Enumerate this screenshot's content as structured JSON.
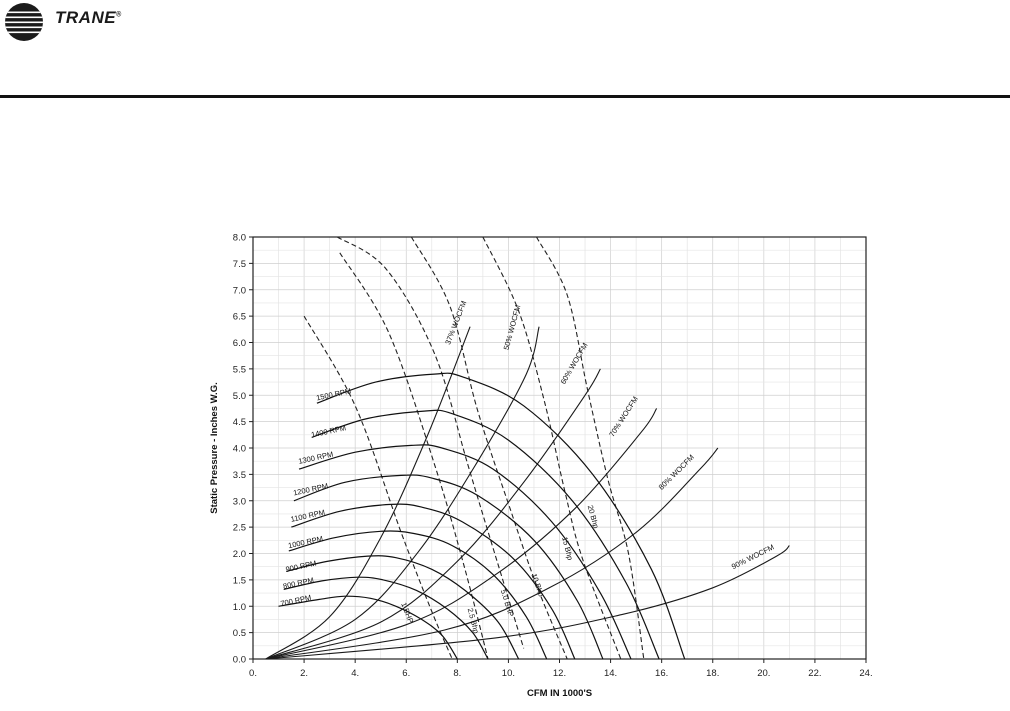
{
  "brand": {
    "name": "TRANE",
    "mark": "®"
  },
  "chart_data": {
    "type": "line",
    "xlabel": "CFM IN 1000'S",
    "ylabel": "Static Pressure - Inches W.G.",
    "xlim": [
      0,
      24
    ],
    "ylim": [
      0,
      8
    ],
    "x_ticks": [
      "0.",
      "2.",
      "4.",
      "6.",
      "8.",
      "10.",
      "12.",
      "14.",
      "16.",
      "18.",
      "20.",
      "22.",
      "24."
    ],
    "y_ticks": [
      "0.0",
      "0.5",
      "1.0",
      "1.5",
      "2.0",
      "2.5",
      "3.0",
      "3.5",
      "4.0",
      "4.5",
      "5.0",
      "5.5",
      "6.0",
      "6.5",
      "7.0",
      "7.5",
      "8.0"
    ],
    "grid": true,
    "rpm_curves": [
      {
        "name": "700 RPM",
        "label_at": [
          1.1,
          1.0
        ],
        "points": [
          [
            1.0,
            1.0
          ],
          [
            2.6,
            1.13
          ],
          [
            3.6,
            1.19
          ],
          [
            4.6,
            1.15
          ],
          [
            5.6,
            1.0
          ],
          [
            6.6,
            0.75
          ],
          [
            7.4,
            0.45
          ],
          [
            8.0,
            0.0
          ]
        ]
      },
      {
        "name": "800 RPM",
        "label_at": [
          1.2,
          1.33
        ],
        "points": [
          [
            1.2,
            1.32
          ],
          [
            2.7,
            1.48
          ],
          [
            4.1,
            1.55
          ],
          [
            5.1,
            1.5
          ],
          [
            6.4,
            1.3
          ],
          [
            7.6,
            0.95
          ],
          [
            8.6,
            0.5
          ],
          [
            9.2,
            0.0
          ]
        ]
      },
      {
        "name": "900 RPM",
        "label_at": [
          1.3,
          1.65
        ],
        "points": [
          [
            1.3,
            1.66
          ],
          [
            2.9,
            1.85
          ],
          [
            4.5,
            1.95
          ],
          [
            5.6,
            1.92
          ],
          [
            7.0,
            1.7
          ],
          [
            8.3,
            1.3
          ],
          [
            9.6,
            0.7
          ],
          [
            10.4,
            0.0
          ]
        ]
      },
      {
        "name": "1000 RPM",
        "label_at": [
          1.4,
          2.1
        ],
        "points": [
          [
            1.4,
            2.05
          ],
          [
            3.2,
            2.3
          ],
          [
            5.0,
            2.42
          ],
          [
            6.3,
            2.38
          ],
          [
            7.8,
            2.15
          ],
          [
            9.4,
            1.6
          ],
          [
            10.7,
            0.8
          ],
          [
            11.5,
            0.0
          ]
        ]
      },
      {
        "name": "1100 RPM",
        "label_at": [
          1.5,
          2.6
        ],
        "points": [
          [
            1.5,
            2.5
          ],
          [
            3.4,
            2.8
          ],
          [
            5.4,
            2.93
          ],
          [
            6.6,
            2.88
          ],
          [
            8.2,
            2.6
          ],
          [
            10.2,
            1.9
          ],
          [
            11.7,
            0.95
          ],
          [
            12.6,
            0.0
          ]
        ]
      },
      {
        "name": "1200 RPM",
        "label_at": [
          1.6,
          3.1
        ],
        "points": [
          [
            1.6,
            3.0
          ],
          [
            3.6,
            3.35
          ],
          [
            5.8,
            3.48
          ],
          [
            7.0,
            3.43
          ],
          [
            8.8,
            3.1
          ],
          [
            11.0,
            2.25
          ],
          [
            12.7,
            1.1
          ],
          [
            13.7,
            0.0
          ]
        ]
      },
      {
        "name": "1300 RPM",
        "label_at": [
          1.8,
          3.7
        ],
        "points": [
          [
            1.8,
            3.6
          ],
          [
            4.0,
            3.92
          ],
          [
            6.2,
            4.05
          ],
          [
            7.4,
            4.0
          ],
          [
            9.4,
            3.6
          ],
          [
            11.7,
            2.6
          ],
          [
            13.6,
            1.25
          ],
          [
            14.8,
            0.0
          ]
        ]
      },
      {
        "name": "1400 RPM",
        "label_at": [
          2.3,
          4.2
        ],
        "points": [
          [
            2.3,
            4.2
          ],
          [
            4.4,
            4.55
          ],
          [
            6.7,
            4.7
          ],
          [
            7.8,
            4.65
          ],
          [
            10.0,
            4.15
          ],
          [
            12.5,
            3.0
          ],
          [
            14.6,
            1.45
          ],
          [
            15.9,
            0.0
          ]
        ]
      },
      {
        "name": "1500 RPM",
        "label_at": [
          2.5,
          4.9
        ],
        "points": [
          [
            2.5,
            4.85
          ],
          [
            4.8,
            5.25
          ],
          [
            7.1,
            5.4
          ],
          [
            8.2,
            5.35
          ],
          [
            10.6,
            4.8
          ],
          [
            13.3,
            3.5
          ],
          [
            15.6,
            1.7
          ],
          [
            16.9,
            0.0
          ]
        ]
      }
    ],
    "efficiency_lines": [
      {
        "name": "37% WOCFM",
        "label_at": [
          7.7,
          5.95
        ],
        "points": [
          [
            0.5,
            0.0
          ],
          [
            3.0,
            0.8
          ],
          [
            5.0,
            2.3
          ],
          [
            6.8,
            4.2
          ],
          [
            8.5,
            6.3
          ]
        ]
      },
      {
        "name": "50% WOCFM",
        "label_at": [
          10.0,
          5.85
        ],
        "points": [
          [
            0.5,
            0.0
          ],
          [
            4.0,
            0.75
          ],
          [
            6.5,
            2.05
          ],
          [
            8.8,
            3.75
          ],
          [
            10.7,
            5.4
          ],
          [
            11.2,
            6.3
          ]
        ]
      },
      {
        "name": "60% WOCFM",
        "label_at": [
          12.2,
          5.2
        ],
        "points": [
          [
            0.5,
            0.0
          ],
          [
            5.0,
            0.7
          ],
          [
            8.0,
            1.85
          ],
          [
            10.6,
            3.35
          ],
          [
            13.0,
            5.0
          ],
          [
            13.6,
            5.5
          ]
        ]
      },
      {
        "name": "70% WOCFM",
        "label_at": [
          14.1,
          4.2
        ],
        "points": [
          [
            0.5,
            0.0
          ],
          [
            6.0,
            0.65
          ],
          [
            9.5,
            1.6
          ],
          [
            12.6,
            2.85
          ],
          [
            15.2,
            4.3
          ],
          [
            15.8,
            4.75
          ]
        ]
      },
      {
        "name": "80% WOCFM",
        "label_at": [
          16.0,
          3.2
        ],
        "points": [
          [
            0.5,
            0.0
          ],
          [
            7.5,
            0.55
          ],
          [
            11.6,
            1.35
          ],
          [
            15.0,
            2.4
          ],
          [
            17.5,
            3.6
          ],
          [
            18.2,
            4.0
          ]
        ]
      },
      {
        "name": "90% WOCFM",
        "label_at": [
          18.8,
          1.7
        ],
        "points": [
          [
            0.5,
            0.0
          ],
          [
            9.5,
            0.4
          ],
          [
            14.5,
            0.85
          ],
          [
            18.0,
            1.35
          ],
          [
            20.5,
            1.95
          ],
          [
            21.0,
            2.15
          ]
        ]
      }
    ],
    "bhp_lines": [
      {
        "name": "1 BHP",
        "label_at": [
          5.8,
          1.05
        ],
        "points": [
          [
            2.0,
            6.5
          ],
          [
            4.0,
            4.8
          ],
          [
            5.8,
            2.4
          ],
          [
            7.0,
            0.9
          ],
          [
            7.8,
            0.0
          ]
        ]
      },
      {
        "name": "2.5 Bhp",
        "label_at": [
          8.4,
          0.95
        ],
        "points": [
          [
            3.4,
            7.7
          ],
          [
            5.3,
            6.2
          ],
          [
            7.1,
            3.7
          ],
          [
            8.3,
            1.7
          ],
          [
            9.2,
            0.0
          ]
        ]
      },
      {
        "name": "5.0 BHP",
        "label_at": [
          9.7,
          1.3
        ],
        "points": [
          [
            3.3,
            8.0
          ],
          [
            5.2,
            7.4
          ],
          [
            7.1,
            5.8
          ],
          [
            8.4,
            3.7
          ],
          [
            9.4,
            2.1
          ],
          [
            10.6,
            0.2
          ]
        ]
      },
      {
        "name": "10 Bhp",
        "label_at": [
          10.9,
          1.6
        ],
        "points": [
          [
            6.2,
            8.0
          ],
          [
            7.7,
            6.7
          ],
          [
            8.8,
            4.7
          ],
          [
            10.1,
            2.8
          ],
          [
            11.1,
            1.4
          ],
          [
            12.3,
            0.0
          ]
        ]
      },
      {
        "name": "15 Bhp",
        "label_at": [
          12.1,
          2.3
        ],
        "points": [
          [
            9.0,
            8.0
          ],
          [
            10.4,
            6.6
          ],
          [
            11.4,
            4.9
          ],
          [
            12.2,
            3.2
          ],
          [
            12.9,
            1.9
          ],
          [
            14.4,
            0.0
          ]
        ]
      },
      {
        "name": "20 Bhp",
        "label_at": [
          13.1,
          2.9
        ],
        "points": [
          [
            11.1,
            8.0
          ],
          [
            12.3,
            6.9
          ],
          [
            13.1,
            5.1
          ],
          [
            13.9,
            3.4
          ],
          [
            14.7,
            2.0
          ],
          [
            15.3,
            0.0
          ]
        ]
      }
    ]
  }
}
